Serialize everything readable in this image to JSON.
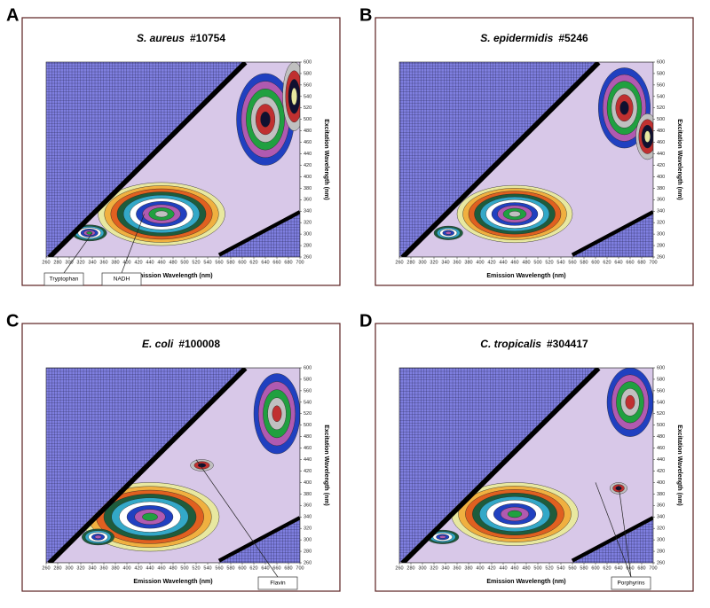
{
  "chart_data": [
    {
      "type": "contour",
      "panel": "A",
      "organism": "S. aureus",
      "id": "#10754",
      "xlabel": "Emission Wavelength (nm)",
      "ylabel": "Excitation Wavelength (nm)",
      "xlim": [
        260,
        700
      ],
      "xticks": [
        260,
        280,
        300,
        320,
        340,
        360,
        380,
        400,
        420,
        440,
        460,
        480,
        500,
        520,
        540,
        560,
        580,
        600,
        620,
        640,
        660,
        680,
        700
      ],
      "ylim": [
        260,
        600
      ],
      "yticks": [
        260,
        280,
        300,
        320,
        340,
        360,
        380,
        400,
        420,
        440,
        460,
        480,
        500,
        520,
        540,
        560,
        580,
        600
      ],
      "annotations": [
        "Tryptophan",
        "NADH"
      ]
    },
    {
      "type": "contour",
      "panel": "B",
      "organism": "S. epidermidis",
      "id": "#5246",
      "xlabel": "Emission Wavelength (nm)",
      "ylabel": "Excitation Wavelength (nm)",
      "xlim": [
        260,
        700
      ],
      "xticks": [
        260,
        280,
        300,
        320,
        340,
        360,
        380,
        400,
        420,
        440,
        460,
        480,
        500,
        520,
        540,
        560,
        580,
        600,
        620,
        640,
        660,
        680,
        700
      ],
      "ylim": [
        260,
        600
      ],
      "yticks": [
        260,
        280,
        300,
        320,
        340,
        360,
        380,
        400,
        420,
        440,
        460,
        480,
        500,
        520,
        540,
        560,
        580,
        600
      ],
      "annotations": []
    },
    {
      "type": "contour",
      "panel": "C",
      "organism": "E. coli",
      "id": "#100008",
      "xlabel": "Emission Wavelength (nm)",
      "ylabel": "Excitation Wavelength (nm)",
      "xlim": [
        260,
        700
      ],
      "xticks": [
        260,
        280,
        300,
        320,
        340,
        360,
        380,
        400,
        420,
        440,
        460,
        480,
        500,
        520,
        540,
        560,
        580,
        600,
        620,
        640,
        660,
        680,
        700
      ],
      "ylim": [
        260,
        600
      ],
      "yticks": [
        260,
        280,
        300,
        320,
        340,
        360,
        380,
        400,
        420,
        440,
        460,
        480,
        500,
        520,
        540,
        560,
        580,
        600
      ],
      "annotations": [
        "Flavin"
      ]
    },
    {
      "type": "contour",
      "panel": "D",
      "organism": "C. tropicalis",
      "id": "#304417",
      "xlabel": "Emission Wavelength (nm)",
      "ylabel": "Excitation Wavelength (nm)",
      "xlim": [
        260,
        700
      ],
      "xticks": [
        260,
        280,
        300,
        320,
        340,
        360,
        380,
        400,
        420,
        440,
        460,
        480,
        500,
        520,
        540,
        560,
        580,
        600,
        620,
        640,
        660,
        680,
        700
      ],
      "ylim": [
        260,
        600
      ],
      "yticks": [
        260,
        280,
        300,
        320,
        340,
        360,
        380,
        400,
        420,
        440,
        460,
        480,
        500,
        520,
        540,
        560,
        580,
        600
      ],
      "annotations": [
        "Porphyrins"
      ]
    }
  ]
}
